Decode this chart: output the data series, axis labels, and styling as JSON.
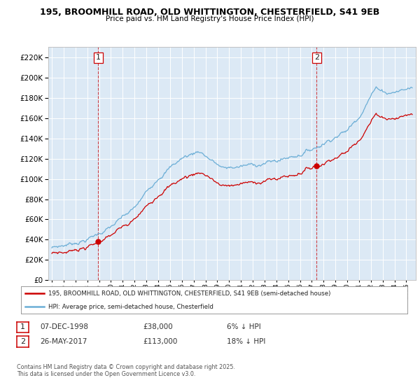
{
  "title1": "195, BROOMHILL ROAD, OLD WHITTINGTON, CHESTERFIELD, S41 9EB",
  "title2": "Price paid vs. HM Land Registry's House Price Index (HPI)",
  "legend_line1": "195, BROOMHILL ROAD, OLD WHITTINGTON, CHESTERFIELD, S41 9EB (semi-detached house)",
  "legend_line2": "HPI: Average price, semi-detached house, Chesterfield",
  "table_row1": [
    "1",
    "07-DEC-1998",
    "£38,000",
    "6% ↓ HPI"
  ],
  "table_row2": [
    "2",
    "26-MAY-2017",
    "£113,000",
    "18% ↓ HPI"
  ],
  "footnote": "Contains HM Land Registry data © Crown copyright and database right 2025.\nThis data is licensed under the Open Government Licence v3.0.",
  "sale1_date": 1998.92,
  "sale1_price": 38000,
  "sale2_date": 2017.4,
  "sale2_price": 113000,
  "hpi_color": "#6baed6",
  "sold_color": "#cc0000",
  "bg_color": "#ffffff",
  "chart_bg": "#dce9f5",
  "grid_color": "#ffffff",
  "ylim": [
    0,
    230000
  ],
  "ytick_step": 20000,
  "title_color": "#000000",
  "xlim_left": 1994.7,
  "xlim_right": 2025.8
}
